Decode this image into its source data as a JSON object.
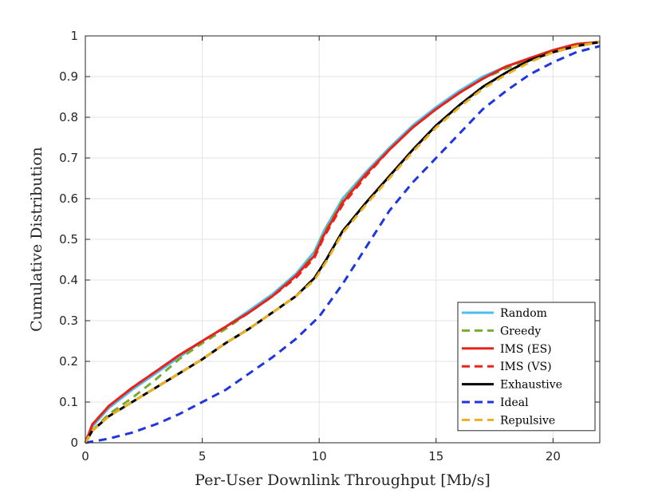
{
  "chart_data": {
    "type": "line",
    "title": "",
    "xlabel": "Per-User Downlink Throughput [Mb/s]",
    "ylabel": "Cumulative Distribution",
    "xlim": [
      0,
      22
    ],
    "ylim": [
      0,
      1
    ],
    "xticks": [
      0,
      5,
      10,
      15,
      20
    ],
    "yticks": [
      0,
      0.1,
      0.2,
      0.3,
      0.4,
      0.5,
      0.6,
      0.7,
      0.8,
      0.9,
      1
    ],
    "xtick_labels": [
      "0",
      "5",
      "10",
      "15",
      "20"
    ],
    "ytick_labels": [
      "0",
      "0.1",
      "0.2",
      "0.3",
      "0.4",
      "0.5",
      "0.6",
      "0.7",
      "0.8",
      "0.9",
      "1"
    ],
    "grid": true,
    "legend_position": "bottom-right",
    "series": [
      {
        "name": "Random",
        "color": "#4DBEEE",
        "dash": "solid",
        "x": [
          0,
          0.3,
          1,
          2,
          3,
          4,
          5,
          6,
          7,
          8,
          9,
          9.8,
          10.2,
          11,
          12,
          13,
          14,
          15,
          16,
          17,
          18,
          19,
          20,
          21,
          22
        ],
        "y": [
          0,
          0.04,
          0.085,
          0.13,
          0.17,
          0.21,
          0.25,
          0.285,
          0.325,
          0.365,
          0.415,
          0.47,
          0.52,
          0.6,
          0.665,
          0.725,
          0.78,
          0.825,
          0.865,
          0.9,
          0.925,
          0.945,
          0.965,
          0.98,
          0.985
        ]
      },
      {
        "name": "Greedy",
        "color": "#77AC30",
        "dash": "dashed",
        "x": [
          0,
          0.3,
          1,
          2,
          3,
          4,
          5,
          6,
          7,
          8,
          9,
          9.8,
          10.2,
          11,
          12,
          13,
          14,
          15,
          16,
          17,
          18,
          19,
          20,
          21,
          22
        ],
        "y": [
          0,
          0.03,
          0.07,
          0.11,
          0.155,
          0.205,
          0.245,
          0.28,
          0.32,
          0.36,
          0.41,
          0.465,
          0.515,
          0.595,
          0.66,
          0.72,
          0.775,
          0.82,
          0.86,
          0.895,
          0.92,
          0.94,
          0.96,
          0.975,
          0.985
        ]
      },
      {
        "name": "IMS (ES)",
        "color": "#E8231C",
        "dash": "solid",
        "x": [
          0,
          0.3,
          1,
          2,
          3,
          4,
          5,
          6,
          7,
          8,
          9,
          9.8,
          10.2,
          11,
          12,
          13,
          14,
          15,
          16,
          17,
          18,
          19,
          20,
          21,
          22
        ],
        "y": [
          0,
          0.045,
          0.09,
          0.135,
          0.175,
          0.215,
          0.25,
          0.285,
          0.32,
          0.36,
          0.41,
          0.46,
          0.51,
          0.59,
          0.66,
          0.72,
          0.775,
          0.82,
          0.86,
          0.895,
          0.925,
          0.945,
          0.965,
          0.98,
          0.985
        ]
      },
      {
        "name": "IMS (VS)",
        "color": "#E8231C",
        "dash": "dashed",
        "x": [
          0,
          0.3,
          1,
          2,
          3,
          4,
          5,
          6,
          7,
          8,
          9,
          9.8,
          10.2,
          11,
          12,
          13,
          14,
          15,
          16,
          17,
          18,
          19,
          20,
          21,
          22
        ],
        "y": [
          0,
          0.045,
          0.09,
          0.135,
          0.175,
          0.215,
          0.25,
          0.285,
          0.32,
          0.36,
          0.405,
          0.455,
          0.505,
          0.585,
          0.655,
          0.72,
          0.775,
          0.82,
          0.86,
          0.895,
          0.925,
          0.945,
          0.965,
          0.98,
          0.985
        ]
      },
      {
        "name": "Exhaustive",
        "color": "#000000",
        "dash": "solid",
        "x": [
          0,
          0.3,
          1,
          2,
          3,
          4,
          5,
          6,
          7,
          8,
          9,
          9.8,
          10.3,
          11,
          12,
          13,
          14,
          15,
          16,
          17,
          18,
          19,
          20,
          21,
          22
        ],
        "y": [
          0,
          0.03,
          0.065,
          0.1,
          0.135,
          0.17,
          0.205,
          0.245,
          0.28,
          0.32,
          0.36,
          0.405,
          0.45,
          0.52,
          0.59,
          0.655,
          0.72,
          0.78,
          0.83,
          0.875,
          0.91,
          0.94,
          0.96,
          0.975,
          0.985
        ]
      },
      {
        "name": "Ideal",
        "color": "#1F35E0",
        "dash": "dashed",
        "x": [
          0,
          1,
          2,
          3,
          4,
          5,
          6,
          7,
          8,
          9,
          10,
          11,
          12,
          13,
          14,
          15,
          16,
          17,
          18,
          19,
          20,
          21,
          22
        ],
        "y": [
          0,
          0.01,
          0.025,
          0.045,
          0.07,
          0.1,
          0.13,
          0.17,
          0.21,
          0.255,
          0.31,
          0.39,
          0.48,
          0.57,
          0.64,
          0.7,
          0.76,
          0.82,
          0.865,
          0.905,
          0.935,
          0.96,
          0.975
        ]
      },
      {
        "name": "Repulsive",
        "color": "#EDB120",
        "dash": "dashed",
        "x": [
          0,
          0.3,
          1,
          2,
          3,
          4,
          5,
          6,
          7,
          8,
          9,
          9.8,
          10.3,
          11,
          12,
          13,
          14,
          15,
          16,
          17,
          18,
          19,
          20,
          21,
          22
        ],
        "y": [
          0,
          0.03,
          0.065,
          0.1,
          0.135,
          0.17,
          0.205,
          0.245,
          0.28,
          0.32,
          0.36,
          0.4,
          0.445,
          0.515,
          0.585,
          0.65,
          0.715,
          0.775,
          0.825,
          0.87,
          0.905,
          0.935,
          0.96,
          0.975,
          0.985
        ]
      }
    ]
  }
}
